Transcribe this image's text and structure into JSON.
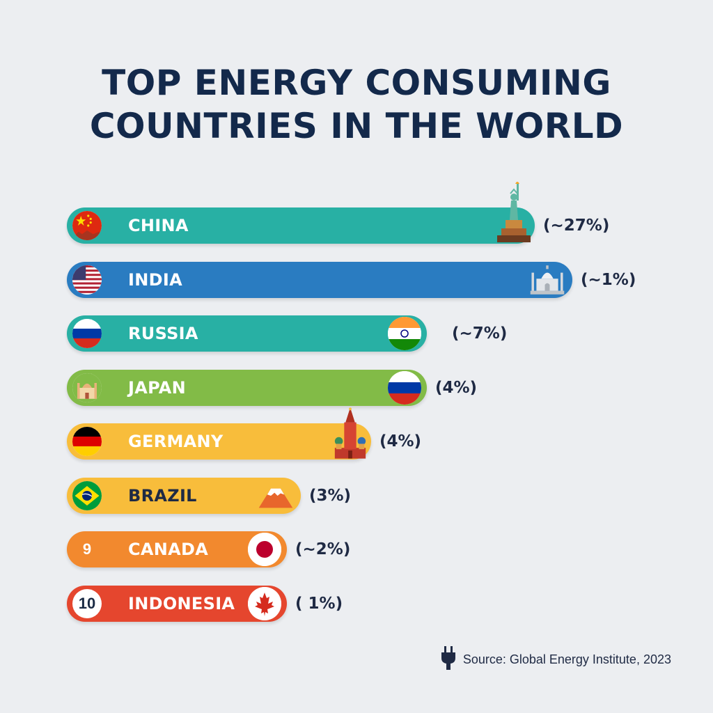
{
  "chart_data": {
    "type": "bar",
    "orientation": "horizontal",
    "title_lines": [
      "TOP ENERGY CONSUMING",
      "COUNTRIES IN THE WORLD"
    ],
    "categories": [
      "CHINA",
      "INDIA",
      "RUSSIA",
      "JAPAN",
      "GERMANY",
      "BRAZIL",
      "CANADA",
      "INDONESIA"
    ],
    "value_labels": [
      "(~27%)",
      "(~1%)",
      "(~7%)",
      "(4%)",
      "(4%)",
      "(3%)",
      "(~2%)",
      "( 1%)"
    ],
    "values": [
      27,
      1,
      7,
      4,
      4,
      3,
      2,
      1
    ],
    "bar_fill_fraction": [
      1.0,
      1.08,
      0.77,
      0.77,
      0.65,
      0.5,
      0.47,
      0.47
    ],
    "rank_labels": [
      "",
      "",
      "",
      "",
      "",
      "",
      "9",
      "10"
    ],
    "start_icons": [
      "china-flag",
      "usa-flag",
      "russia-flag",
      "taj-palace-icon",
      "germany-flag",
      "brazil-flag",
      "rank-number",
      "rank-number"
    ],
    "end_icons": [
      "statue-of-liberty-icon",
      "taj-mahal-icon",
      "india-flag",
      "russia-flag",
      "kremlin-icon",
      "mount-fuji-icon",
      "japan-flag",
      "canada-flag"
    ],
    "colors": [
      "#28b0a4",
      "#2a7cc1",
      "#28b0a4",
      "#82bb47",
      "#f8bd3b",
      "#f8bd3b",
      "#f2892e",
      "#e5462e"
    ],
    "label_colors": [
      "#ffffff",
      "#ffffff",
      "#ffffff",
      "#ffffff",
      "#ffffff",
      "#1f2a44",
      "#ffffff",
      "#ffffff"
    ],
    "source": "Source: Global Energy Institute, 2023",
    "source_icon": "plug-icon"
  }
}
